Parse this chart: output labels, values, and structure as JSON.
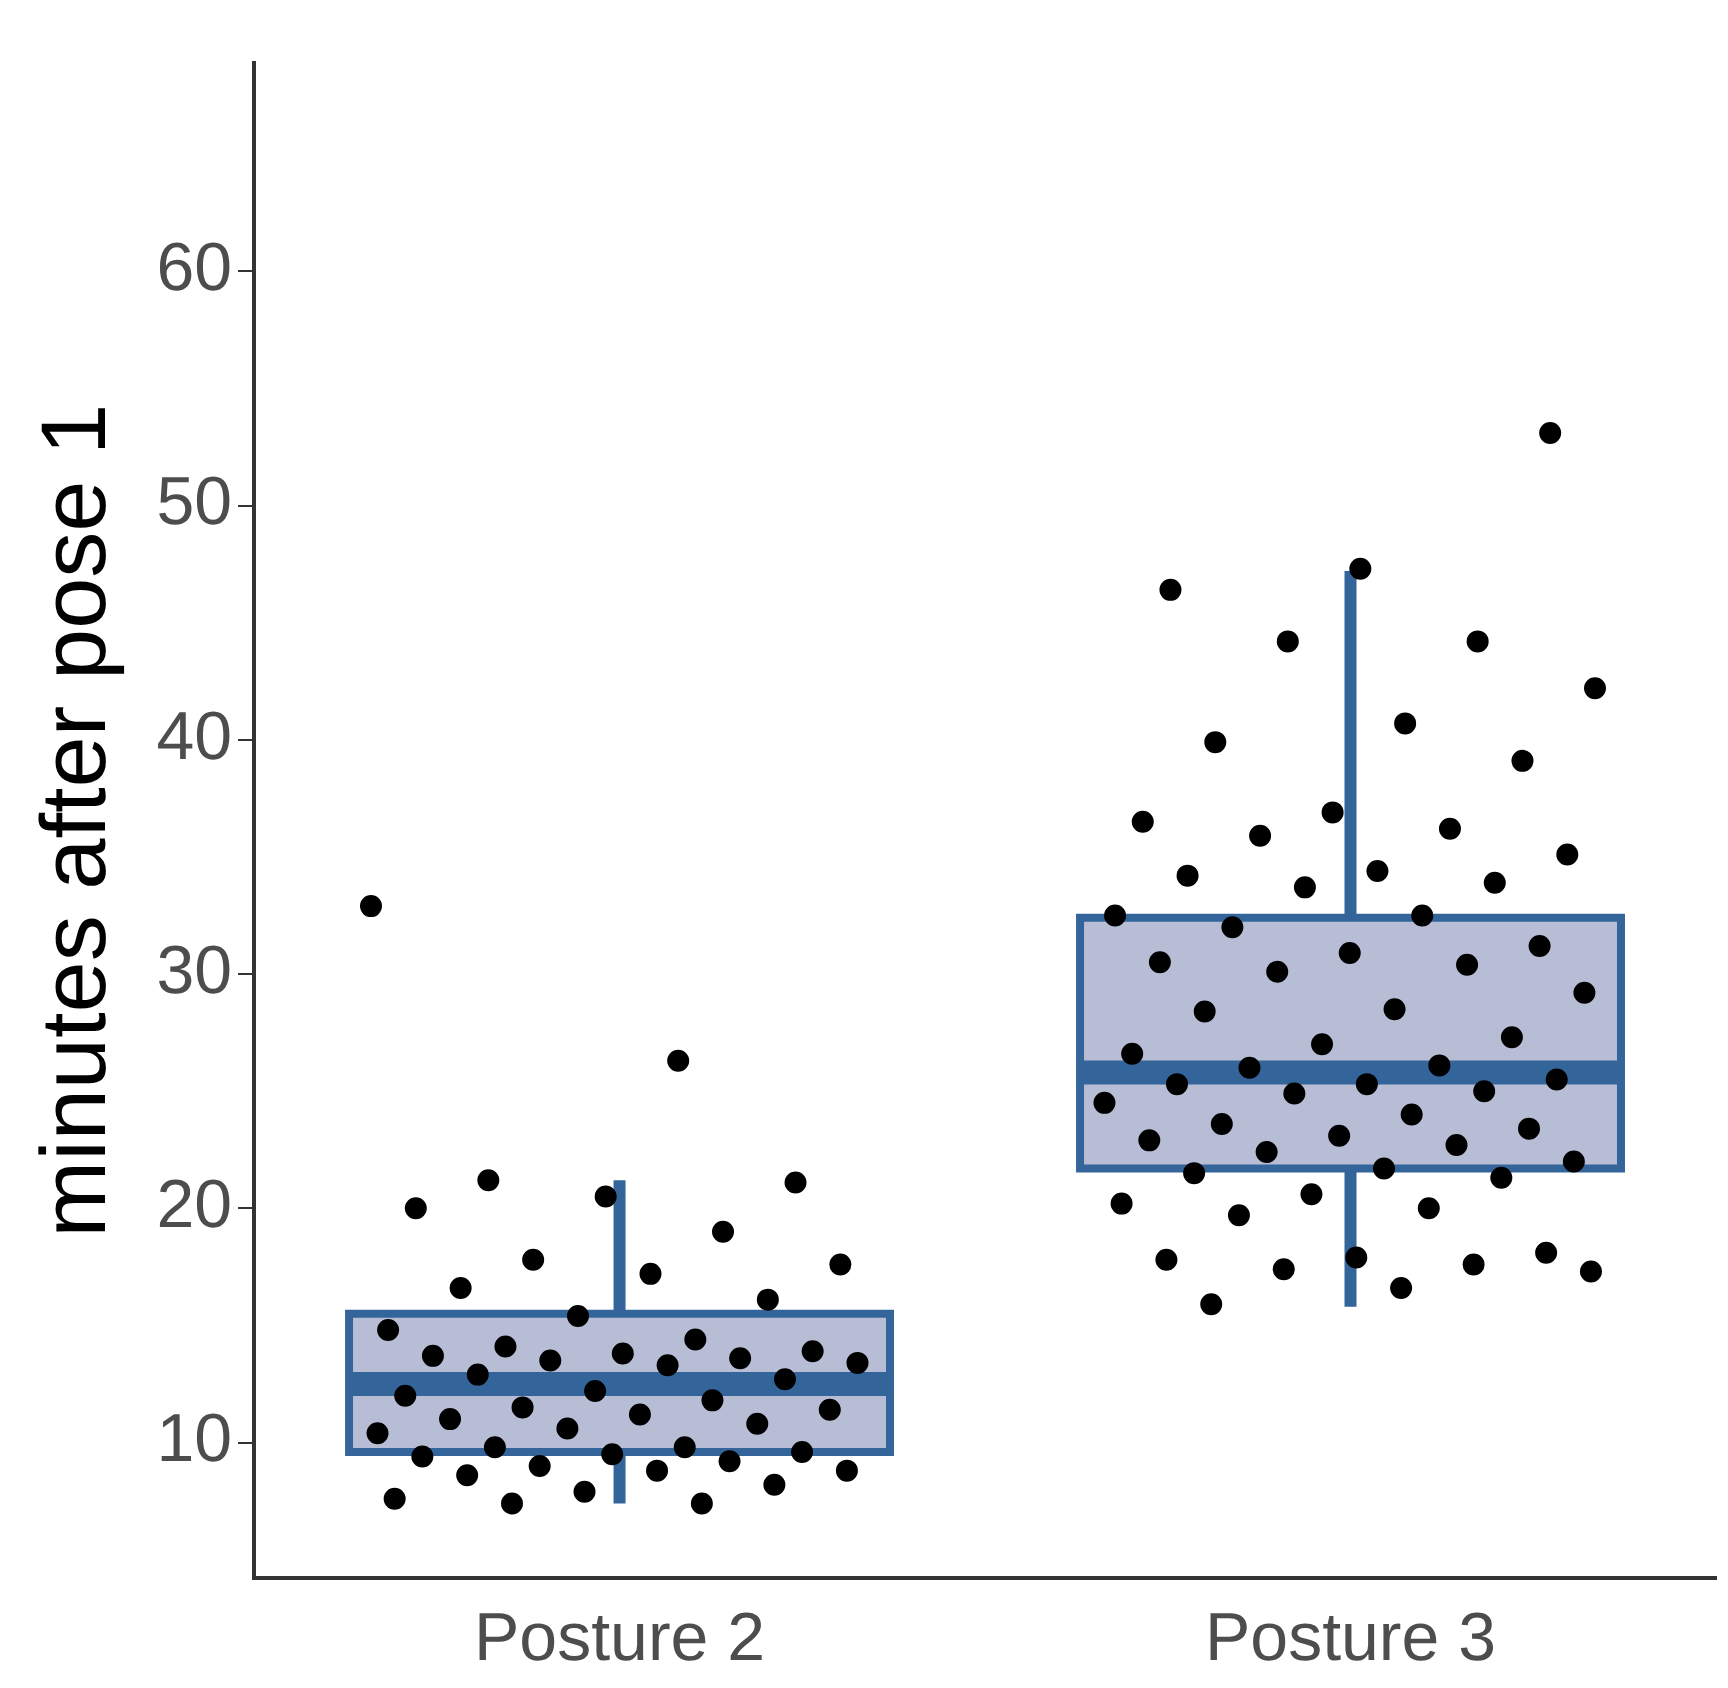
{
  "chart_data": {
    "type": "box",
    "ylabel": "minutes after pose 1",
    "categories": [
      "Posture 2",
      "Posture 3"
    ],
    "ylim": [
      4.2,
      68.9
    ],
    "yticks": [
      10,
      20,
      30,
      40,
      50,
      60
    ],
    "grid": false,
    "legend": false,
    "series": [
      {
        "type": "box",
        "color": "#34659a",
        "colors": [
          "#b8bdd6",
          "#b8bdd6"
        ],
        "boxes": [
          {
            "low": 7.4,
            "q1": 9.6,
            "median": 12.5,
            "q3": 15.5,
            "high": 21.2
          },
          {
            "low": 15.8,
            "q1": 21.7,
            "median": 25.8,
            "q3": 32.4,
            "high": 47.2
          }
        ]
      },
      {
        "type": "scatter",
        "color": "#000000",
        "marker": "circle",
        "x": [
          "Posture 2",
          "Posture 2",
          "Posture 2",
          "Posture 2",
          "Posture 2",
          "Posture 2",
          "Posture 2",
          "Posture 2",
          "Posture 2",
          "Posture 2",
          "Posture 2",
          "Posture 2",
          "Posture 2",
          "Posture 2",
          "Posture 2",
          "Posture 2",
          "Posture 2",
          "Posture 2",
          "Posture 2",
          "Posture 2",
          "Posture 2",
          "Posture 2",
          "Posture 2",
          "Posture 2",
          "Posture 2",
          "Posture 2",
          "Posture 2",
          "Posture 2",
          "Posture 2",
          "Posture 2",
          "Posture 2",
          "Posture 2",
          "Posture 2",
          "Posture 2",
          "Posture 2",
          "Posture 2",
          "Posture 2",
          "Posture 2",
          "Posture 2",
          "Posture 2",
          "Posture 2",
          "Posture 2",
          "Posture 2",
          "Posture 2",
          "Posture 2",
          "Posture 2",
          "Posture 2",
          "Posture 2",
          "Posture 2",
          "Posture 2",
          "Posture 3",
          "Posture 3",
          "Posture 3",
          "Posture 3",
          "Posture 3",
          "Posture 3",
          "Posture 3",
          "Posture 3",
          "Posture 3",
          "Posture 3",
          "Posture 3",
          "Posture 3",
          "Posture 3",
          "Posture 3",
          "Posture 3",
          "Posture 3",
          "Posture 3",
          "Posture 3",
          "Posture 3",
          "Posture 3",
          "Posture 3",
          "Posture 3",
          "Posture 3",
          "Posture 3",
          "Posture 3",
          "Posture 3",
          "Posture 3",
          "Posture 3",
          "Posture 3",
          "Posture 3",
          "Posture 3",
          "Posture 3",
          "Posture 3",
          "Posture 3",
          "Posture 3",
          "Posture 3",
          "Posture 3",
          "Posture 3",
          "Posture 3",
          "Posture 3",
          "Posture 3",
          "Posture 3",
          "Posture 3",
          "Posture 3",
          "Posture 3",
          "Posture 3",
          "Posture 3",
          "Posture 3",
          "Posture 3",
          "Posture 3",
          "Posture 3",
          "Posture 3",
          "Posture 3",
          "Posture 3",
          "Posture 3",
          "Posture 3",
          "Posture 3",
          "Posture 3",
          "Posture 3",
          "Posture 3",
          "Posture 3",
          "Posture 3",
          "Posture 3"
        ],
        "values": [
          32.9,
          26.3,
          21.2,
          21.1,
          20.5,
          20.0,
          19.0,
          17.8,
          17.6,
          17.2,
          16.6,
          16.1,
          15.4,
          14.8,
          14.4,
          14.1,
          13.9,
          13.8,
          13.7,
          13.6,
          13.5,
          13.4,
          13.3,
          12.9,
          12.7,
          12.2,
          12.0,
          11.8,
          11.5,
          11.4,
          11.2,
          11.0,
          10.8,
          10.6,
          10.4,
          9.8,
          9.8,
          9.6,
          9.5,
          9.4,
          9.2,
          9.0,
          8.8,
          8.8,
          8.6,
          8.2,
          7.9,
          7.6,
          7.4,
          7.4,
          53.1,
          47.3,
          46.4,
          44.2,
          44.2,
          42.2,
          40.7,
          39.9,
          39.1,
          36.9,
          36.5,
          36.2,
          35.9,
          35.1,
          34.4,
          34.2,
          33.9,
          33.7,
          32.5,
          32.5,
          32.0,
          31.2,
          30.9,
          30.5,
          30.4,
          30.1,
          29.2,
          28.5,
          28.4,
          27.3,
          27.0,
          26.6,
          26.1,
          26.0,
          25.5,
          25.3,
          25.3,
          25.0,
          24.9,
          24.5,
          24.0,
          23.6,
          23.4,
          23.1,
          22.9,
          22.7,
          22.4,
          22.0,
          21.7,
          21.5,
          21.3,
          20.6,
          20.2,
          20.0,
          19.7,
          18.1,
          17.9,
          17.8,
          17.6,
          17.4,
          17.3,
          16.6,
          15.9
        ]
      }
    ]
  }
}
